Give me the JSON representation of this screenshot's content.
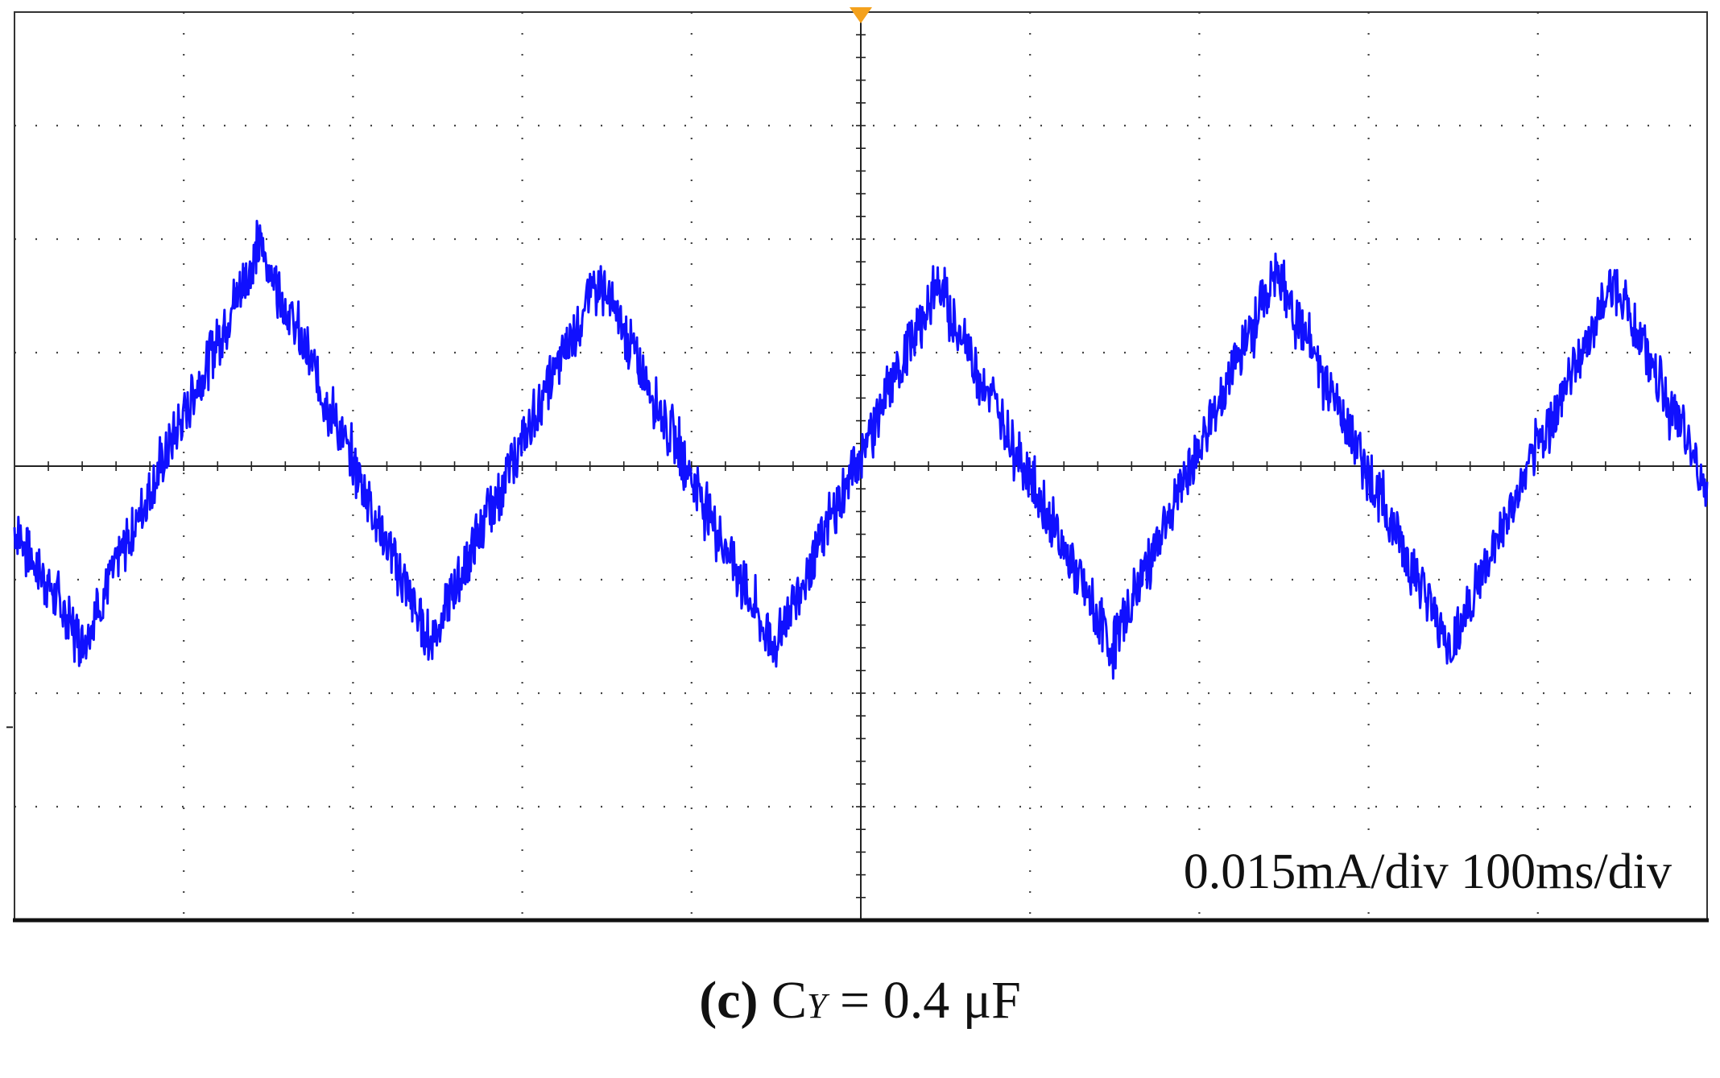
{
  "chart_data": {
    "type": "line",
    "title": "",
    "scale_annotation": "0.015mA/div 100ms/div",
    "x_divisions": 10,
    "y_divisions": 8,
    "xlim": [
      0,
      10
    ],
    "ylim": [
      -4,
      4
    ],
    "xlabel": "",
    "ylabel": "",
    "grid": "dotted",
    "trigger_marker_color": "#F4A11C",
    "series": [
      {
        "color": "#1010FF",
        "waveform": "triangle",
        "x": [
          0,
          0.4,
          2.0,
          4.0,
          6.0,
          8.0,
          9.6
        ],
        "points": [
          [
            0.0,
            -0.55
          ],
          [
            0.4,
            -1.55
          ],
          [
            1.45,
            1.95
          ],
          [
            2.45,
            -1.55
          ],
          [
            3.45,
            1.65
          ],
          [
            4.48,
            -1.6
          ],
          [
            5.45,
            1.6
          ],
          [
            6.48,
            -1.6
          ],
          [
            7.45,
            1.7
          ],
          [
            8.48,
            -1.6
          ],
          [
            9.45,
            1.65
          ],
          [
            10.0,
            -0.2
          ]
        ]
      }
    ]
  },
  "caption": {
    "letter": "(c)",
    "symbol": "C",
    "subscript": "Y",
    "value": "= 0.4 μF"
  }
}
